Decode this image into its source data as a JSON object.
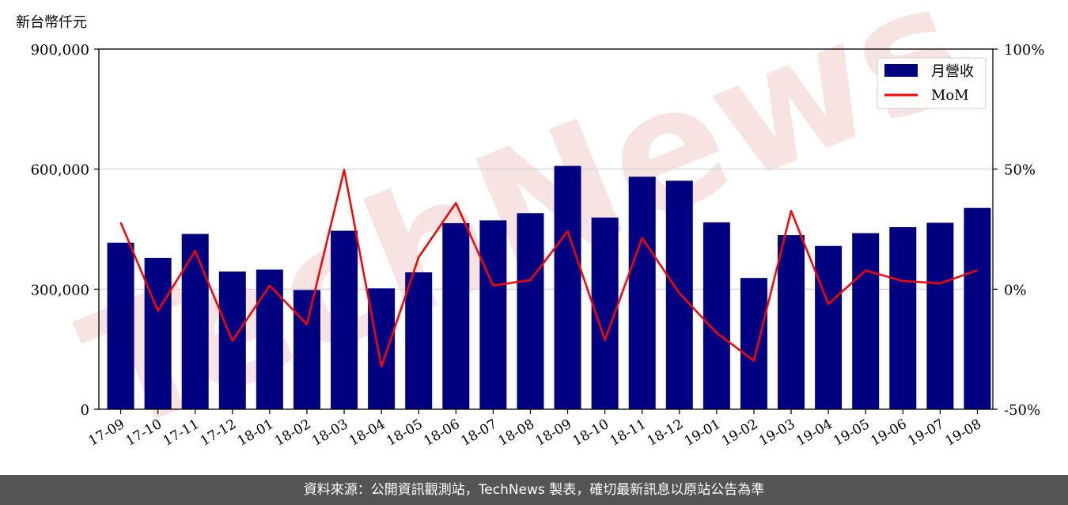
{
  "chart_data": {
    "type": "bar",
    "unit_label": "新台幣仟元",
    "categories": [
      "17-09",
      "17-10",
      "17-11",
      "17-12",
      "18-01",
      "18-02",
      "18-03",
      "18-04",
      "18-05",
      "18-06",
      "18-07",
      "18-08",
      "18-09",
      "18-10",
      "18-11",
      "18-12",
      "19-01",
      "19-02",
      "19-03",
      "19-04",
      "19-05",
      "19-06",
      "19-07",
      "19-08"
    ],
    "series": [
      {
        "name": "月營收",
        "axis": "left",
        "type": "bar",
        "color": "#000080",
        "values": [
          416000,
          378000,
          438000,
          344000,
          349000,
          298000,
          446000,
          302000,
          342000,
          465000,
          472000,
          490000,
          608000,
          479000,
          581000,
          571000,
          467000,
          328000,
          435000,
          408000,
          440000,
          455000,
          466000,
          503000
        ]
      },
      {
        "name": "MoM",
        "axis": "right",
        "type": "line",
        "color": "#ff0000",
        "values": [
          27.8,
          -9.0,
          15.9,
          -21.5,
          1.5,
          -14.6,
          49.7,
          -32.3,
          13.3,
          35.9,
          1.5,
          3.8,
          24.1,
          -21.2,
          21.3,
          -1.7,
          -18.2,
          -29.8,
          32.6,
          -6.2,
          7.8,
          3.4,
          2.4,
          7.9
        ]
      }
    ],
    "y_left": {
      "min": 0,
      "max": 900000,
      "ticks": [
        "0",
        "300,000",
        "600,000",
        "900,000"
      ]
    },
    "y_right": {
      "min": -50,
      "max": 100,
      "ticks": [
        "-50%",
        "0%",
        "50%",
        "100%"
      ]
    },
    "legend": {
      "placement": "top-right",
      "entries": [
        "月營收",
        "MoM"
      ]
    },
    "grid": "horizontal",
    "watermark": "TechNews"
  },
  "footer": {
    "text": "資料來源：公開資訊觀測站，TechNews 製表，確切最新訊息以原站公告為準"
  }
}
